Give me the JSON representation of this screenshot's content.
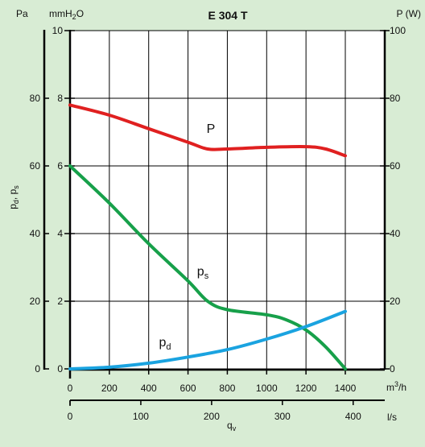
{
  "chart_data": {
    "type": "line",
    "title": "E 304 T",
    "left_axis": {
      "unit_pa": "Pa",
      "unit_mmh2o_base": "mmH",
      "unit_mmh2o_sub": "2",
      "unit_mmh2o_end": "O",
      "label_main": "p",
      "label_sub1": "d",
      "label_sep": ", p",
      "label_sub2": "s",
      "pa_ticks": [
        "0",
        "20",
        "40",
        "60",
        "80"
      ],
      "mmh2o_ticks": [
        "0",
        "2",
        "4",
        "6",
        "8",
        "10"
      ],
      "ylim_mmh2o": [
        0,
        10
      ]
    },
    "right_axis": {
      "label": "P (W)",
      "ticks": [
        "0",
        "20",
        "40",
        "60",
        "80",
        "100"
      ],
      "ylim": [
        0,
        100
      ]
    },
    "x_axis_m3h": {
      "unit_base": "m",
      "unit_sup": "3",
      "unit_end": "/h",
      "ticks": [
        "0",
        "200",
        "400",
        "600",
        "800",
        "1000",
        "1200",
        "1400"
      ],
      "xlim": [
        0,
        1400
      ]
    },
    "x_axis_ls": {
      "unit": "l/s",
      "label_main": "q",
      "label_sub": "v",
      "ticks": [
        "0",
        "100",
        "200",
        "300",
        "400"
      ]
    },
    "series": [
      {
        "name": "P",
        "label_main": "P",
        "label_sub": "",
        "axis": "right",
        "color": "#e02020",
        "x": [
          0,
          200,
          400,
          600,
          700,
          800,
          1000,
          1200,
          1300,
          1400
        ],
        "y": [
          78,
          75,
          71,
          67,
          65,
          65,
          65.5,
          65.7,
          65,
          63
        ]
      },
      {
        "name": "ps",
        "label_main": "p",
        "label_sub": "s",
        "axis": "left_mmh2o",
        "color": "#17a04a",
        "x": [
          0,
          200,
          400,
          600,
          700,
          800,
          1000,
          1100,
          1200,
          1300,
          1400
        ],
        "y": [
          6,
          4.9,
          3.7,
          2.6,
          2.0,
          1.75,
          1.6,
          1.45,
          1.15,
          0.65,
          0
        ]
      },
      {
        "name": "pd",
        "label_main": "p",
        "label_sub": "d",
        "axis": "left_mmh2o",
        "color": "#1aa3e0",
        "x": [
          0,
          200,
          400,
          600,
          800,
          1000,
          1200,
          1400
        ],
        "y": [
          0,
          0.05,
          0.17,
          0.35,
          0.57,
          0.88,
          1.25,
          1.7
        ]
      }
    ]
  }
}
